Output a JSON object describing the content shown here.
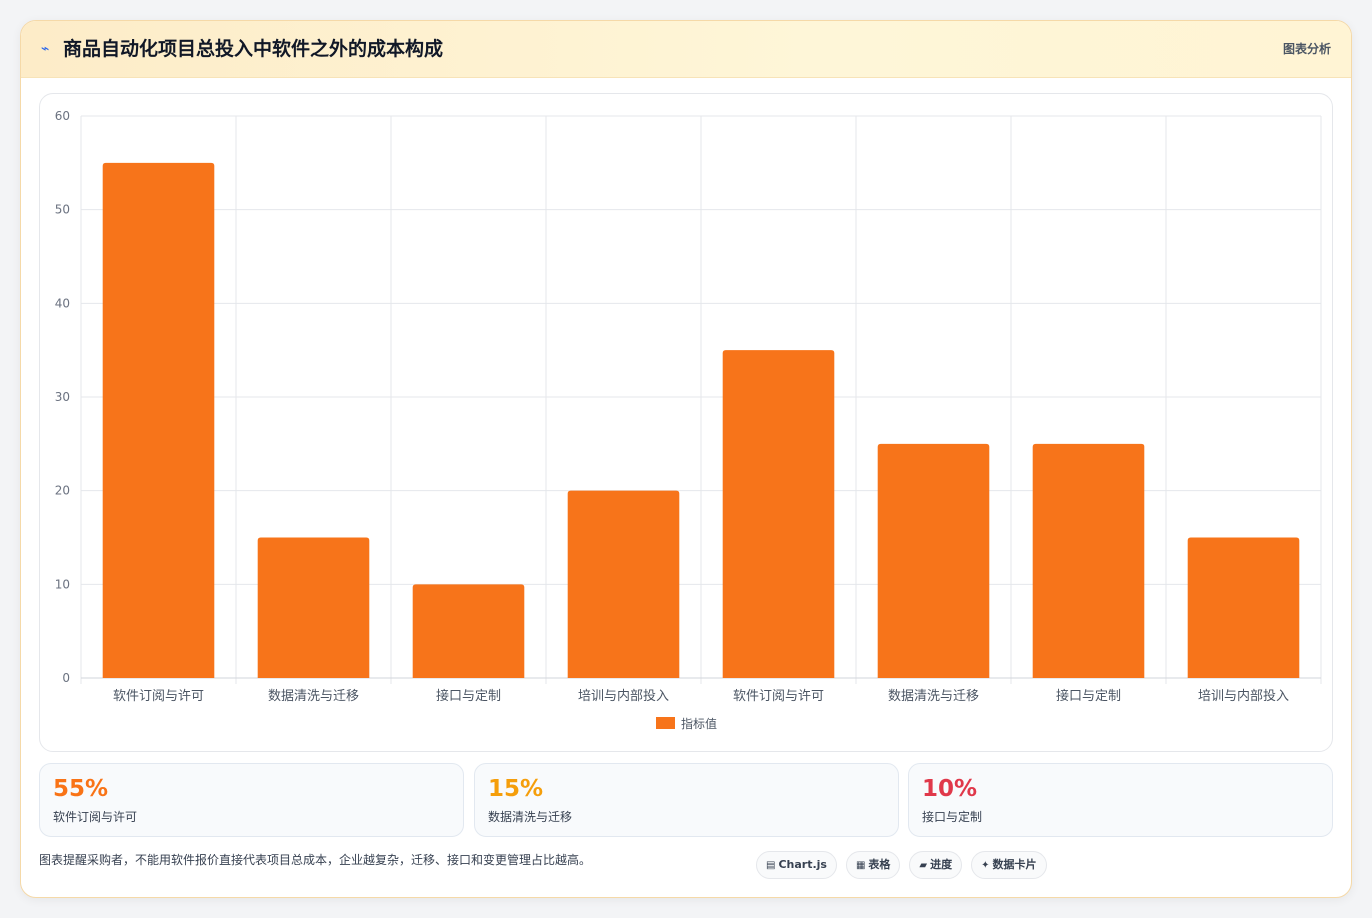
{
  "header": {
    "icon": "chart-line-icon",
    "title": "商品自动化项目总投入中软件之外的成本构成",
    "right_label": "图表分析"
  },
  "chart_data": {
    "type": "bar",
    "categories": [
      "软件订阅与许可",
      "数据清洗与迁移",
      "接口与定制",
      "培训与内部投入",
      "软件订阅与许可",
      "数据清洗与迁移",
      "接口与定制",
      "培训与内部投入"
    ],
    "series": [
      {
        "name": "指标值",
        "values": [
          55,
          15,
          10,
          20,
          35,
          25,
          25,
          15
        ],
        "color": "#f7741a"
      }
    ],
    "ylim": [
      0,
      60
    ],
    "yticks": [
      0,
      10,
      20,
      30,
      40,
      50,
      60
    ],
    "grid": true,
    "legend_position": "bottom"
  },
  "stats": [
    {
      "value": "55%",
      "label": "软件订阅与许可",
      "color": "#f97316"
    },
    {
      "value": "15%",
      "label": "数据清洗与迁移",
      "color": "#f59e0b"
    },
    {
      "value": "10%",
      "label": "接口与定制",
      "color": "#e0384a"
    }
  ],
  "footer": {
    "note": "图表提醒采购者，不能用软件报价直接代表项目总成本，企业越复杂，迁移、接口和变更管理占比越高。",
    "chips": [
      {
        "icon": "▤",
        "label": "Chart.js"
      },
      {
        "icon": "▦",
        "label": "表格"
      },
      {
        "icon": "▰",
        "label": "进度"
      },
      {
        "icon": "✦",
        "label": "数据卡片"
      }
    ]
  }
}
